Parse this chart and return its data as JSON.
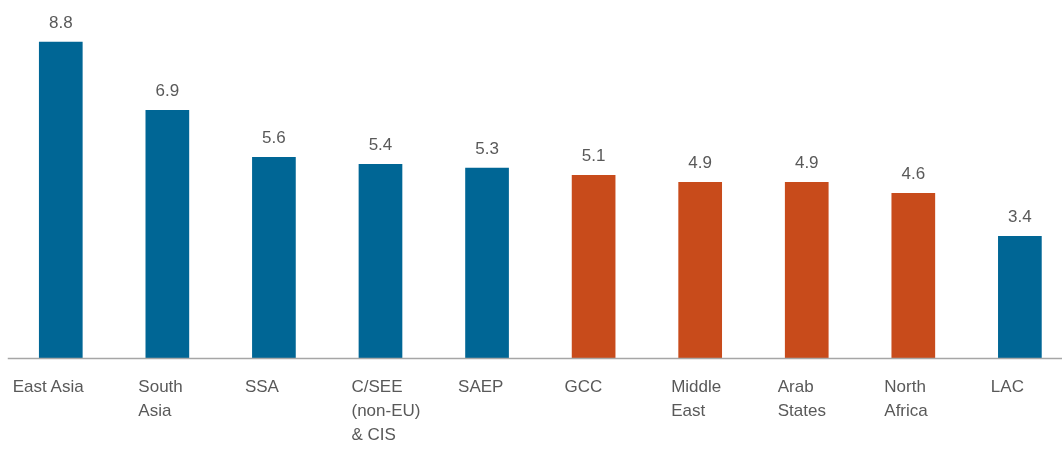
{
  "chart_data": {
    "type": "bar",
    "categories": [
      "East Asia",
      "South Asia",
      "SSA",
      "C/SEE (non-EU) & CIS",
      "SAEP",
      "GCC",
      "Middle East",
      "Arab States",
      "North Africa",
      "LAC"
    ],
    "values": [
      8.8,
      6.9,
      5.6,
      5.4,
      5.3,
      5.1,
      4.9,
      4.9,
      4.6,
      3.4
    ],
    "colors": [
      "#006695",
      "#006695",
      "#006695",
      "#006695",
      "#006695",
      "#c84b1b",
      "#c84b1b",
      "#c84b1b",
      "#c84b1b",
      "#006695"
    ],
    "data_labels": true
  }
}
